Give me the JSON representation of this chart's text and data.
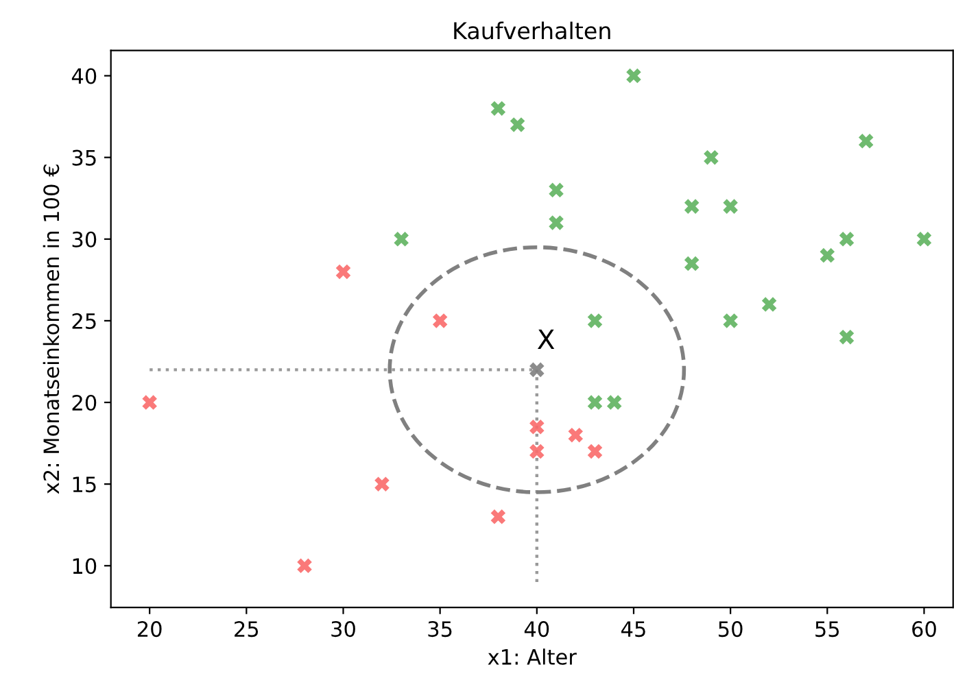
{
  "chart_data": {
    "type": "scatter",
    "title": "Kaufverhalten",
    "xlabel": "x1: Alter",
    "ylabel": "x2: Monatseinkommen in 100 €",
    "xlim": [
      18,
      61.5
    ],
    "ylim": [
      7.45,
      41.55
    ],
    "xticks": [
      20,
      25,
      30,
      35,
      40,
      45,
      50,
      55,
      60
    ],
    "yticks": [
      10,
      15,
      20,
      25,
      30,
      35,
      40
    ],
    "marker": "cross",
    "grid": false,
    "series": [
      {
        "color": "#f96a6a",
        "x": [
          20,
          28,
          30,
          32,
          35,
          38,
          40,
          40,
          42,
          43
        ],
        "values": [
          20,
          10,
          28,
          15,
          25,
          13,
          18.5,
          17,
          18,
          17
        ]
      },
      {
        "color": "#5fb35f",
        "x": [
          33,
          38,
          39,
          41,
          41,
          43,
          43,
          44,
          45,
          48,
          48,
          49,
          50,
          50,
          52,
          55,
          56,
          56,
          57,
          60
        ],
        "values": [
          30,
          38,
          37,
          33,
          31,
          25,
          20,
          20,
          40,
          32,
          28.5,
          35,
          32,
          25,
          26,
          29,
          30,
          24,
          36,
          30
        ]
      },
      {
        "color": "#808080",
        "x": [
          40
        ],
        "values": [
          22
        ]
      },
      {
        "type": "line",
        "line_style": "dotted",
        "marker": "none",
        "color": "#999999",
        "x": [
          20,
          40
        ],
        "values": [
          22,
          22
        ]
      },
      {
        "type": "line",
        "line_style": "dotted",
        "marker": "none",
        "color": "#999999",
        "x": [
          40,
          40
        ],
        "values": [
          9,
          22
        ]
      }
    ],
    "annotations": [
      {
        "text": "X",
        "x": 40,
        "y": 22
      }
    ]
  }
}
